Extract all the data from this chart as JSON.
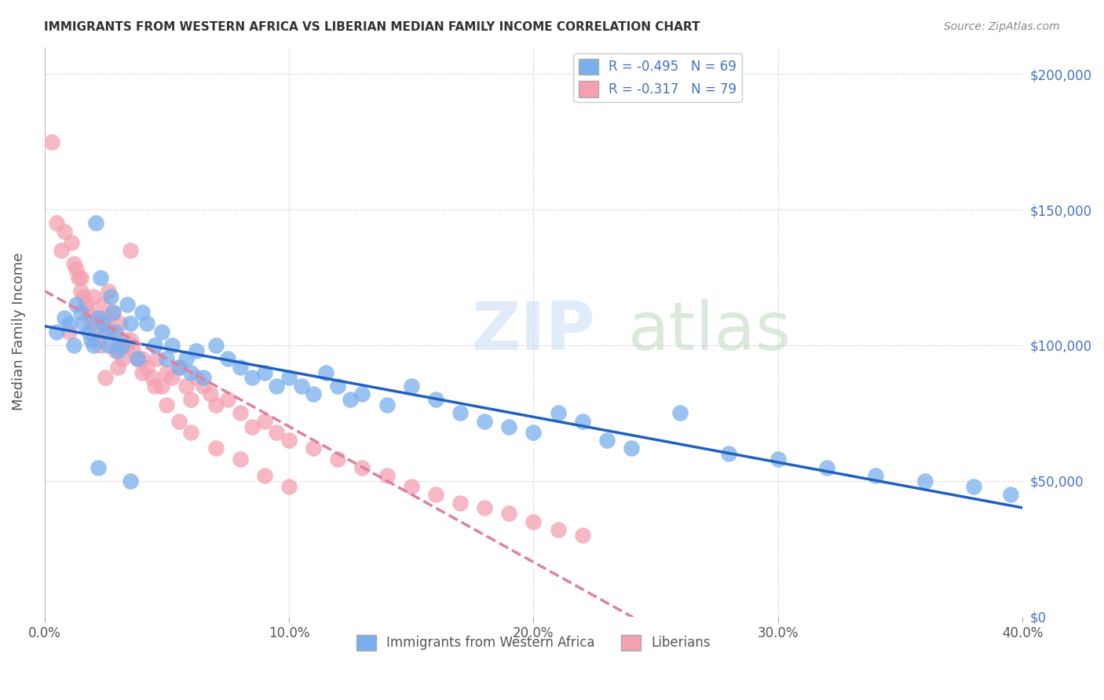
{
  "title": "IMMIGRANTS FROM WESTERN AFRICA VS LIBERIAN MEDIAN FAMILY INCOME CORRELATION CHART",
  "source": "Source: ZipAtlas.com",
  "ylabel": "Median Family Income",
  "xlim": [
    0.0,
    0.4
  ],
  "ylim": [
    0,
    210000
  ],
  "yticks": [
    0,
    50000,
    100000,
    150000,
    200000
  ],
  "xticks": [
    0.0,
    0.1,
    0.2,
    0.3,
    0.4
  ],
  "xtick_labels": [
    "0.0%",
    "10.0%",
    "20.0%",
    "30.0%",
    "40.0%"
  ],
  "ytick_labels": [
    "$0",
    "$50,000",
    "$100,000",
    "$150,000",
    "$200,000"
  ],
  "series1_label": "Immigrants from Western Africa",
  "series1_color": "#7aafed",
  "series1_R": -0.495,
  "series1_N": 69,
  "series2_label": "Liberians",
  "series2_color": "#f4a0b0",
  "series2_R": -0.317,
  "series2_N": 79,
  "background_color": "#ffffff",
  "grid_color": "#dddddd",
  "title_color": "#333333",
  "series1_x": [
    0.005,
    0.008,
    0.01,
    0.012,
    0.013,
    0.015,
    0.016,
    0.018,
    0.019,
    0.02,
    0.021,
    0.022,
    0.023,
    0.024,
    0.025,
    0.026,
    0.027,
    0.028,
    0.029,
    0.03,
    0.032,
    0.034,
    0.035,
    0.038,
    0.04,
    0.042,
    0.045,
    0.048,
    0.05,
    0.052,
    0.055,
    0.058,
    0.06,
    0.062,
    0.065,
    0.07,
    0.075,
    0.08,
    0.085,
    0.09,
    0.095,
    0.1,
    0.105,
    0.11,
    0.115,
    0.12,
    0.125,
    0.13,
    0.14,
    0.15,
    0.16,
    0.17,
    0.18,
    0.19,
    0.2,
    0.21,
    0.22,
    0.23,
    0.24,
    0.26,
    0.28,
    0.3,
    0.32,
    0.34,
    0.36,
    0.38,
    0.395,
    0.022,
    0.035
  ],
  "series1_y": [
    105000,
    110000,
    108000,
    100000,
    115000,
    112000,
    108000,
    105000,
    102000,
    100000,
    145000,
    110000,
    125000,
    108000,
    105000,
    100000,
    118000,
    112000,
    105000,
    98000,
    100000,
    115000,
    108000,
    95000,
    112000,
    108000,
    100000,
    105000,
    95000,
    100000,
    92000,
    95000,
    90000,
    98000,
    88000,
    100000,
    95000,
    92000,
    88000,
    90000,
    85000,
    88000,
    85000,
    82000,
    90000,
    85000,
    80000,
    82000,
    78000,
    85000,
    80000,
    75000,
    72000,
    70000,
    68000,
    75000,
    72000,
    65000,
    62000,
    75000,
    60000,
    58000,
    55000,
    52000,
    50000,
    48000,
    45000,
    55000,
    50000
  ],
  "series2_x": [
    0.003,
    0.005,
    0.007,
    0.008,
    0.01,
    0.011,
    0.012,
    0.013,
    0.014,
    0.015,
    0.016,
    0.017,
    0.018,
    0.019,
    0.02,
    0.021,
    0.022,
    0.023,
    0.024,
    0.025,
    0.026,
    0.027,
    0.028,
    0.029,
    0.03,
    0.031,
    0.032,
    0.033,
    0.034,
    0.035,
    0.036,
    0.038,
    0.04,
    0.042,
    0.044,
    0.046,
    0.048,
    0.05,
    0.052,
    0.055,
    0.058,
    0.06,
    0.062,
    0.065,
    0.068,
    0.07,
    0.075,
    0.08,
    0.085,
    0.09,
    0.095,
    0.1,
    0.11,
    0.12,
    0.13,
    0.14,
    0.15,
    0.16,
    0.17,
    0.18,
    0.19,
    0.2,
    0.21,
    0.22,
    0.025,
    0.03,
    0.035,
    0.04,
    0.045,
    0.05,
    0.055,
    0.06,
    0.07,
    0.08,
    0.09,
    0.1,
    0.015,
    0.02,
    0.025
  ],
  "series2_y": [
    175000,
    145000,
    135000,
    142000,
    105000,
    138000,
    130000,
    128000,
    125000,
    120000,
    118000,
    115000,
    112000,
    108000,
    110000,
    105000,
    102000,
    100000,
    115000,
    108000,
    120000,
    105000,
    112000,
    98000,
    100000,
    108000,
    95000,
    102000,
    100000,
    135000,
    98000,
    95000,
    90000,
    92000,
    88000,
    95000,
    85000,
    90000,
    88000,
    92000,
    85000,
    80000,
    88000,
    85000,
    82000,
    78000,
    80000,
    75000,
    70000,
    72000,
    68000,
    65000,
    62000,
    58000,
    55000,
    52000,
    48000,
    45000,
    42000,
    40000,
    38000,
    35000,
    32000,
    30000,
    88000,
    92000,
    102000,
    95000,
    85000,
    78000,
    72000,
    68000,
    62000,
    58000,
    52000,
    48000,
    125000,
    118000,
    110000
  ]
}
